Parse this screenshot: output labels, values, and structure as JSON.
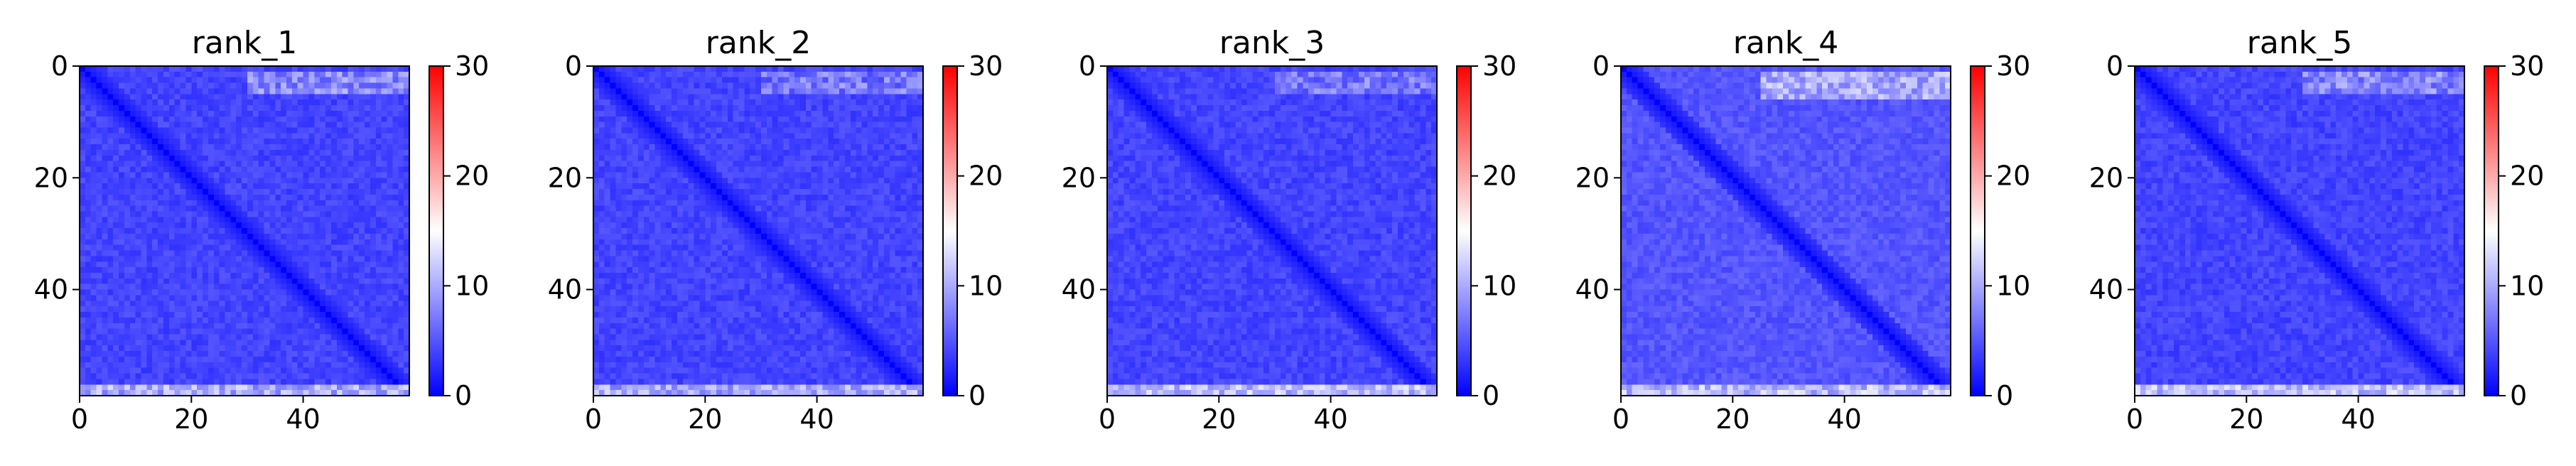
{
  "figure": {
    "panel_count": 5
  },
  "chart_data": [
    {
      "type": "heatmap",
      "title": "rank_1",
      "matrix_size": 59,
      "xlim": [
        0,
        59
      ],
      "ylim": [
        59,
        0
      ],
      "x_ticks": [
        0,
        20,
        40
      ],
      "y_ticks": [
        0,
        20,
        40
      ],
      "colorbar": {
        "vmin": 0,
        "vmax": 30,
        "ticks": [
          0,
          10,
          20,
          30
        ],
        "colors": [
          "#0000ff",
          "#ffffff",
          "#ff0000"
        ]
      },
      "diagonal_value": 0,
      "background_value": 4,
      "edge_bands": [
        {
          "axis": "row",
          "rows": [
            1,
            4
          ],
          "cols": [
            30,
            59
          ],
          "value": 8
        },
        {
          "axis": "row",
          "rows": [
            57,
            58
          ],
          "cols": [
            0,
            59
          ],
          "value": 10
        }
      ]
    },
    {
      "type": "heatmap",
      "title": "rank_2",
      "matrix_size": 59,
      "xlim": [
        0,
        59
      ],
      "ylim": [
        59,
        0
      ],
      "x_ticks": [
        0,
        20,
        40
      ],
      "y_ticks": [
        0,
        20,
        40
      ],
      "colorbar": {
        "vmin": 0,
        "vmax": 30,
        "ticks": [
          0,
          10,
          20,
          30
        ],
        "colors": [
          "#0000ff",
          "#ffffff",
          "#ff0000"
        ]
      },
      "diagonal_value": 0,
      "background_value": 4,
      "edge_bands": [
        {
          "axis": "row",
          "rows": [
            1,
            4
          ],
          "cols": [
            30,
            59
          ],
          "value": 7
        },
        {
          "axis": "row",
          "rows": [
            57,
            58
          ],
          "cols": [
            0,
            59
          ],
          "value": 10
        }
      ]
    },
    {
      "type": "heatmap",
      "title": "rank_3",
      "matrix_size": 59,
      "xlim": [
        0,
        59
      ],
      "ylim": [
        59,
        0
      ],
      "x_ticks": [
        0,
        20,
        40
      ],
      "y_ticks": [
        0,
        20,
        40
      ],
      "colorbar": {
        "vmin": 0,
        "vmax": 30,
        "ticks": [
          0,
          10,
          20,
          30
        ],
        "colors": [
          "#0000ff",
          "#ffffff",
          "#ff0000"
        ]
      },
      "diagonal_value": 0,
      "background_value": 4,
      "edge_bands": [
        {
          "axis": "row",
          "rows": [
            1,
            4
          ],
          "cols": [
            30,
            59
          ],
          "value": 7
        },
        {
          "axis": "row",
          "rows": [
            57,
            58
          ],
          "cols": [
            0,
            59
          ],
          "value": 11
        }
      ]
    },
    {
      "type": "heatmap",
      "title": "rank_4",
      "matrix_size": 59,
      "xlim": [
        0,
        59
      ],
      "ylim": [
        59,
        0
      ],
      "x_ticks": [
        0,
        20,
        40
      ],
      "y_ticks": [
        0,
        20,
        40
      ],
      "colorbar": {
        "vmin": 0,
        "vmax": 30,
        "ticks": [
          0,
          10,
          20,
          30
        ],
        "colors": [
          "#0000ff",
          "#ffffff",
          "#ff0000"
        ]
      },
      "diagonal_value": 0,
      "background_value": 5,
      "edge_bands": [
        {
          "axis": "row",
          "rows": [
            1,
            5
          ],
          "cols": [
            25,
            59
          ],
          "value": 10
        },
        {
          "axis": "row",
          "rows": [
            57,
            58
          ],
          "cols": [
            0,
            59
          ],
          "value": 11
        }
      ]
    },
    {
      "type": "heatmap",
      "title": "rank_5",
      "matrix_size": 59,
      "xlim": [
        0,
        59
      ],
      "ylim": [
        59,
        0
      ],
      "x_ticks": [
        0,
        20,
        40
      ],
      "y_ticks": [
        0,
        20,
        40
      ],
      "colorbar": {
        "vmin": 0,
        "vmax": 30,
        "ticks": [
          0,
          10,
          20,
          30
        ],
        "colors": [
          "#0000ff",
          "#ffffff",
          "#ff0000"
        ]
      },
      "diagonal_value": 0,
      "background_value": 4,
      "edge_bands": [
        {
          "axis": "row",
          "rows": [
            1,
            4
          ],
          "cols": [
            30,
            59
          ],
          "value": 8
        },
        {
          "axis": "row",
          "rows": [
            57,
            58
          ],
          "cols": [
            0,
            59
          ],
          "value": 11
        }
      ]
    }
  ]
}
